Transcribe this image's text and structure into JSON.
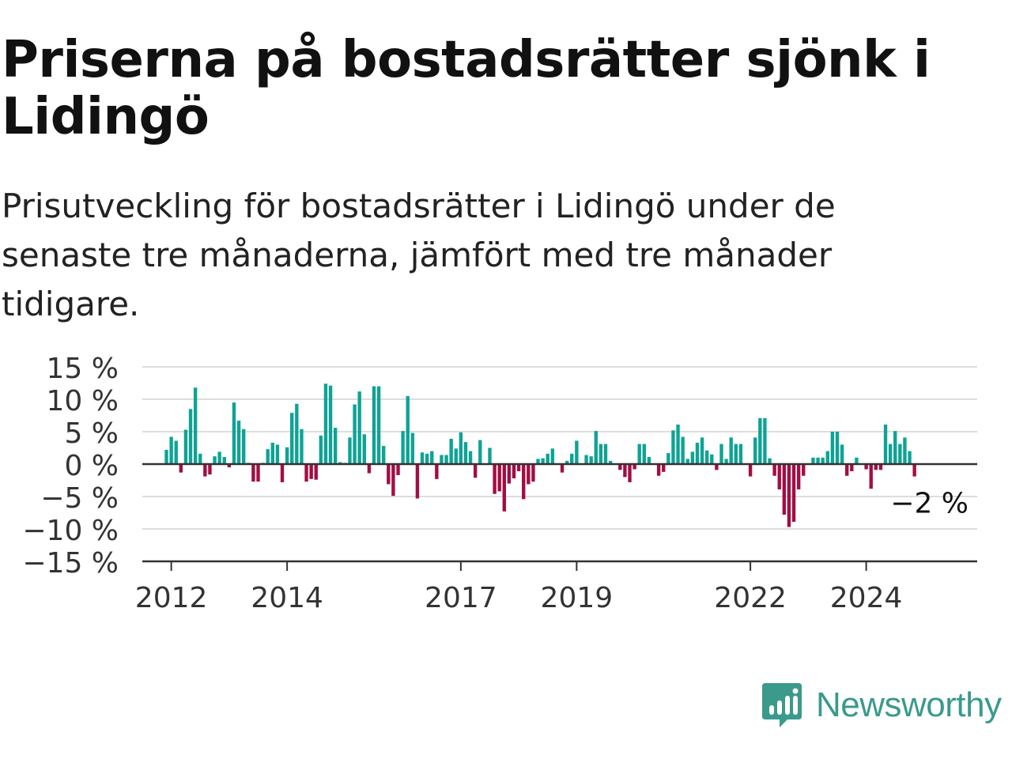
{
  "title": "Priserna på bostadsrätter sjönk i Lidingö",
  "subtitle": "Prisutveckling för bostadsrätter i Lidingö under de senaste tre månaderna, jämfört med tre månader tidigare.",
  "brand": {
    "name": "Newsworthy",
    "color": "#3a9a8c",
    "icon": "newsworthy-logo-icon"
  },
  "colors": {
    "positive": "#0ea394",
    "negative": "#a30d44",
    "grid": "#dddddd",
    "axis": "#333333",
    "text": "#333333"
  },
  "chart_data": {
    "type": "bar",
    "ylim": [
      -15,
      15
    ],
    "yticks": [
      15,
      10,
      5,
      0,
      -5,
      -10,
      -15
    ],
    "ytick_labels": [
      "15 %",
      "10 %",
      "5 %",
      "0 %",
      "−5 %",
      "−10 %",
      "−15 %"
    ],
    "xlim": [
      "2011-07",
      "2025-12"
    ],
    "xticks": [
      "2012-01",
      "2014-01",
      "2017-01",
      "2019-01",
      "2022-01",
      "2024-01"
    ],
    "xtick_labels": [
      "2012",
      "2014",
      "2017",
      "2019",
      "2022",
      "2024"
    ],
    "grid": true,
    "last_value_label": "−2 %",
    "start": "2011-12",
    "frequency": "monthly",
    "values": [
      2.2,
      4.2,
      3.6,
      -1.3,
      5.3,
      8.5,
      11.8,
      1.6,
      -1.9,
      -1.6,
      1.2,
      1.9,
      1.1,
      -0.5,
      9.5,
      6.7,
      5.4,
      0.2,
      -2.7,
      -2.7,
      0.2,
      2.3,
      3.3,
      3.0,
      -2.8,
      2.6,
      7.9,
      9.3,
      5.4,
      -2.7,
      -2.3,
      -2.4,
      4.4,
      12.4,
      12.1,
      5.6,
      0.3,
      0.2,
      4.1,
      9.2,
      11.2,
      4.6,
      -1.4,
      12.0,
      12.0,
      2.8,
      -3.1,
      -4.9,
      -1.7,
      5.1,
      10.5,
      4.8,
      -5.3,
      1.8,
      1.6,
      2.0,
      -2.3,
      1.4,
      1.4,
      3.9,
      2.4,
      4.9,
      3.4,
      2.0,
      -2.1,
      3.7,
      0.1,
      2.5,
      -4.6,
      -4.2,
      -7.3,
      -3.0,
      -2.2,
      -1.1,
      -5.4,
      -3.1,
      -2.7,
      0.8,
      0.9,
      1.6,
      2.4,
      0.1,
      -1.3,
      0.5,
      1.6,
      3.6,
      0.1,
      1.4,
      1.2,
      5.1,
      3.1,
      3.1,
      0.5,
      0.1,
      -0.9,
      -2.0,
      -2.8,
      -0.8,
      3.1,
      3.1,
      1.1,
      0.1,
      -1.8,
      -1.2,
      1.7,
      5.2,
      6.1,
      4.2,
      0.8,
      1.9,
      3.3,
      4.1,
      2.1,
      1.5,
      -0.9,
      3.1,
      0.8,
      4.1,
      3.1,
      3.1,
      0.1,
      -1.9,
      4.1,
      7.1,
      7.1,
      0.9,
      -1.8,
      -3.9,
      -7.8,
      -9.7,
      -8.9,
      -3.9,
      -1.8,
      0.1,
      1.0,
      1.0,
      1.0,
      2.0,
      5.0,
      5.0,
      3.0,
      -1.8,
      -1.1,
      1.0,
      0.1,
      -0.8,
      -3.8,
      -0.9,
      -0.9,
      6.1,
      3.1,
      5.1,
      3.1,
      4.1,
      2.0,
      -1.9
    ]
  }
}
